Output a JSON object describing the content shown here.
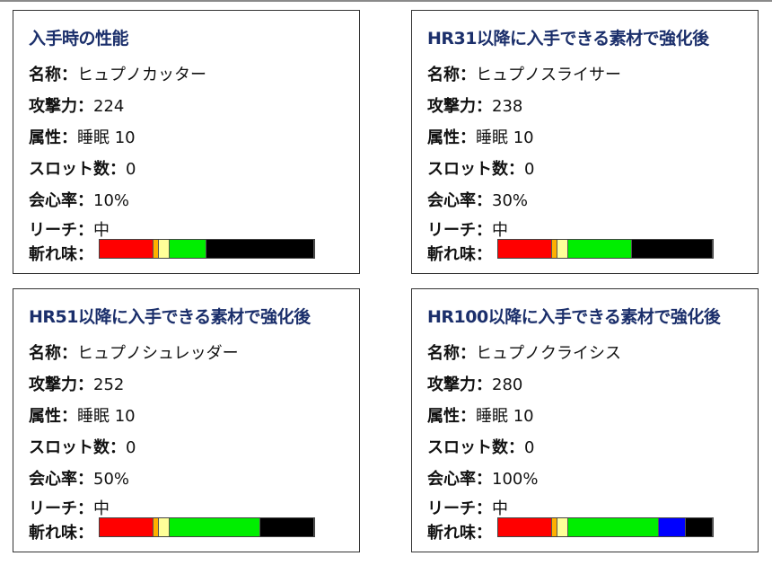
{
  "labels": {
    "name": "名称：",
    "attack": "攻撃力：",
    "element": "属性：",
    "slots": "スロット数：",
    "affinity": "会心率：",
    "reach": "リーチ：",
    "sharpness": "斬れ味："
  },
  "sharpness_colors": {
    "red": "#ff0000",
    "orange": "#ffb000",
    "yellow": "#ffff99",
    "green": "#00ee00",
    "blue": "#0000ff",
    "black": "#000000"
  },
  "cards": [
    {
      "title": "入手時の性能",
      "name": "ヒュプノカッター",
      "attack": "224",
      "element": "睡眠 10",
      "slots": "0",
      "affinity": "10%",
      "reach": "中",
      "sharpness": {
        "red": 100,
        "orange": 10,
        "yellow": 20,
        "green": 70,
        "blue": 0,
        "black": 200
      }
    },
    {
      "title": "HR31以降に入手できる素材で強化後",
      "name": "ヒュプノスライサー",
      "attack": "238",
      "element": "睡眠 10",
      "slots": "0",
      "affinity": "30%",
      "reach": "中",
      "sharpness": {
        "red": 100,
        "orange": 10,
        "yellow": 20,
        "green": 120,
        "blue": 0,
        "black": 150
      }
    },
    {
      "title": "HR51以降に入手できる素材で強化後",
      "name": "ヒュプノシュレッダー",
      "attack": "252",
      "element": "睡眠 10",
      "slots": "0",
      "affinity": "50%",
      "reach": "中",
      "sharpness": {
        "red": 100,
        "orange": 10,
        "yellow": 20,
        "green": 170,
        "blue": 0,
        "black": 100
      }
    },
    {
      "title": "HR100以降に入手できる素材で強化後",
      "name": "ヒュプノクライシス",
      "attack": "280",
      "element": "睡眠 10",
      "slots": "0",
      "affinity": "100%",
      "reach": "中",
      "sharpness": {
        "red": 100,
        "orange": 10,
        "yellow": 20,
        "green": 170,
        "blue": 50,
        "black": 50
      }
    }
  ]
}
